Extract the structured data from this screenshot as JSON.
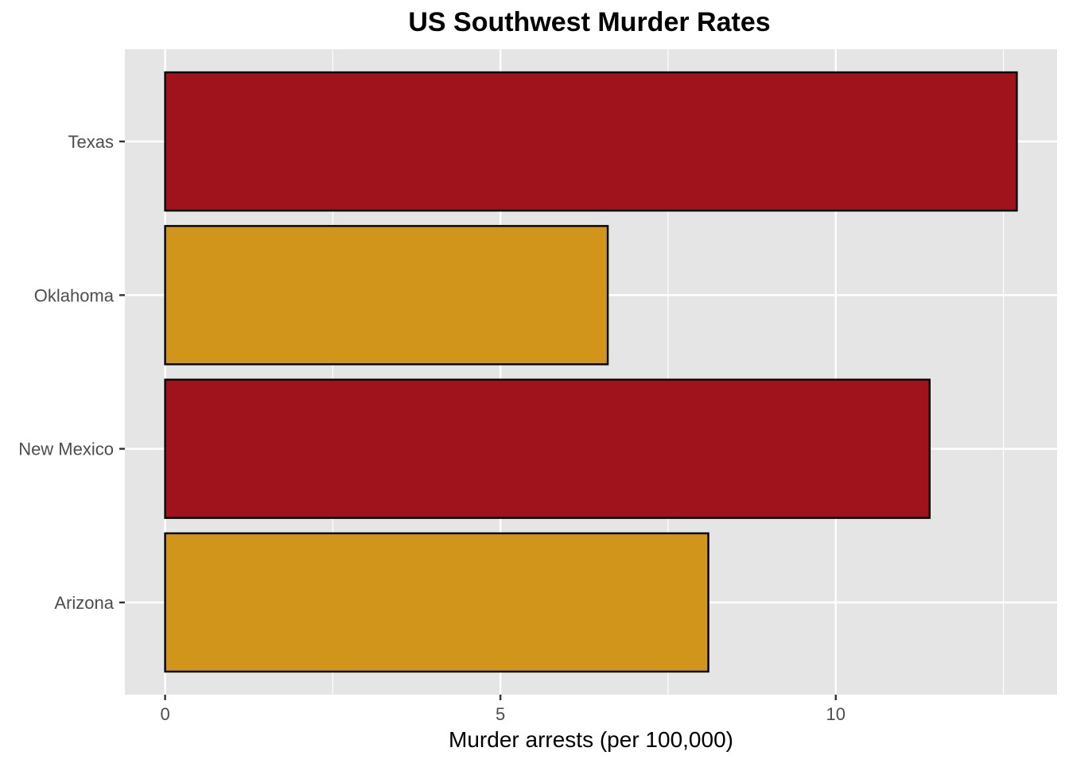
{
  "chart_data": {
    "type": "bar",
    "orientation": "horizontal",
    "title": "US Southwest Murder Rates",
    "xlabel": "Murder arrests (per 100,000)",
    "ylabel": "",
    "categories": [
      "Arizona",
      "New Mexico",
      "Oklahoma",
      "Texas"
    ],
    "values": [
      8.1,
      11.4,
      6.6,
      12.7
    ],
    "highlight": [
      false,
      true,
      false,
      true
    ],
    "xlim": [
      -0.6,
      13.3
    ],
    "xticks": [
      0,
      5,
      10
    ],
    "xtick_labels": [
      "0",
      "5",
      "10"
    ],
    "grid": true,
    "colors": {
      "highlight": "#a0121c",
      "normal": "#d1951c",
      "outline": "#000000",
      "panel": "#e5e5e5",
      "gridline": "#ffffff",
      "tick_text": "#4d4d4d"
    }
  }
}
